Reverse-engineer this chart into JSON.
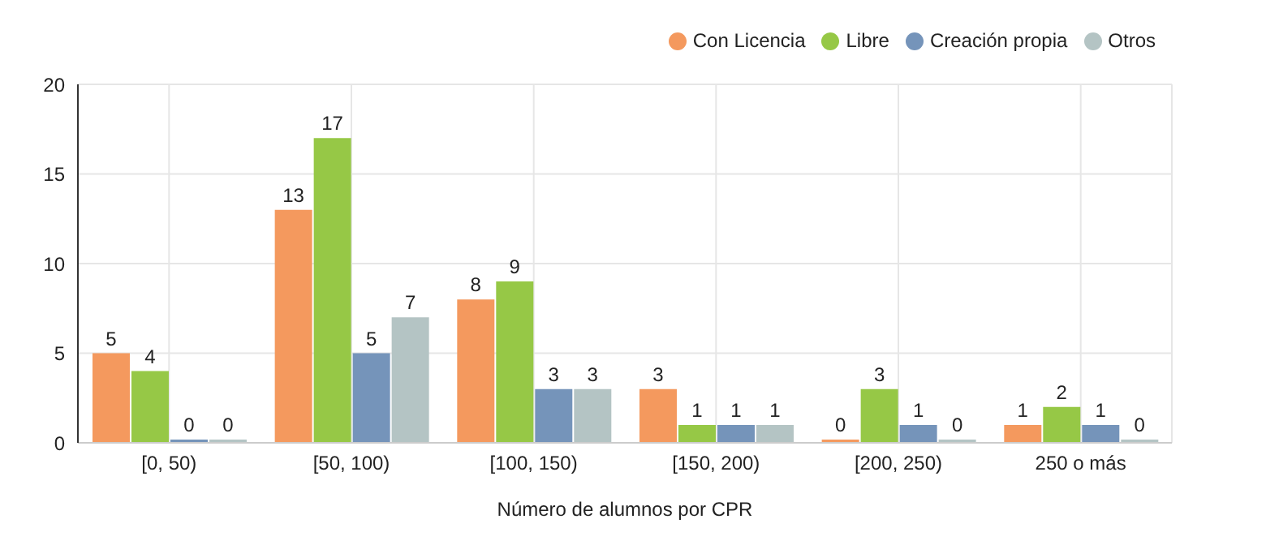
{
  "chart_data": {
    "type": "bar",
    "xlabel": "Número de alumnos por CPR",
    "categories": [
      "[0, 50)",
      "[50, 100)",
      "[100, 150)",
      "[150, 200)",
      "[200, 250)",
      "250 o más"
    ],
    "series": [
      {
        "name": "Con Licencia",
        "color": "#f4995e",
        "values": [
          5,
          13,
          8,
          3,
          0,
          1
        ]
      },
      {
        "name": "Libre",
        "color": "#96c846",
        "values": [
          4,
          17,
          9,
          1,
          3,
          2
        ]
      },
      {
        "name": "Creación propia",
        "color": "#7594ba",
        "values": [
          0,
          5,
          3,
          1,
          1,
          1
        ]
      },
      {
        "name": "Otros",
        "color": "#b4c4c4",
        "values": [
          0,
          7,
          3,
          1,
          0,
          0
        ]
      }
    ],
    "ylim": [
      0,
      20
    ],
    "yticks": [
      0,
      5,
      10,
      15,
      20
    ],
    "grid": true,
    "legend": "top right",
    "data_labels": true
  }
}
